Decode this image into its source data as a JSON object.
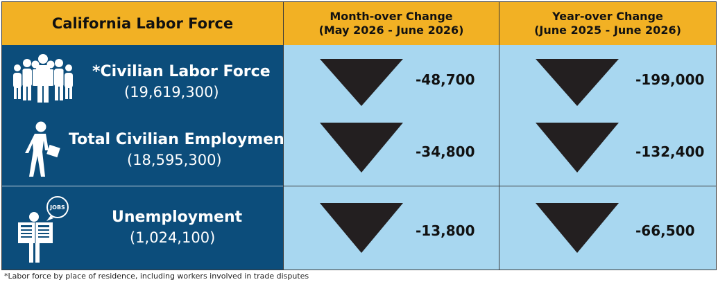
{
  "header": {
    "title": "California Labor Force",
    "col1_line1": "Month-over Change",
    "col1_line2": "(May 2026 - June 2026)",
    "col2_line1": "Year-over Change",
    "col2_line2": "(June 2025 - June 2026)"
  },
  "rows": [
    {
      "label": "*Civilian Labor Force",
      "value": "(19,619,300)",
      "month_change": "-48,700",
      "year_change": "-199,000",
      "icon": "group-of-people-icon"
    },
    {
      "label": "Total Civilian Employment",
      "value": "(18,595,300)",
      "month_change": "-34,800",
      "year_change": "-132,400",
      "icon": "walking-worker-icon"
    },
    {
      "label": "Unemployment",
      "value": "(1,024,100)",
      "month_change": "-13,800",
      "year_change": "-66,500",
      "icon": "job-seeker-newspaper-icon",
      "icon_text": "JOBS"
    }
  ],
  "footnote": "*Labor force by place of residence, including workers involved in trade disputes",
  "colors": {
    "header": "#f2b124",
    "label_bg": "#0c4d7b",
    "cell_bg": "#a8d7f0",
    "arrow": "#231f20"
  }
}
